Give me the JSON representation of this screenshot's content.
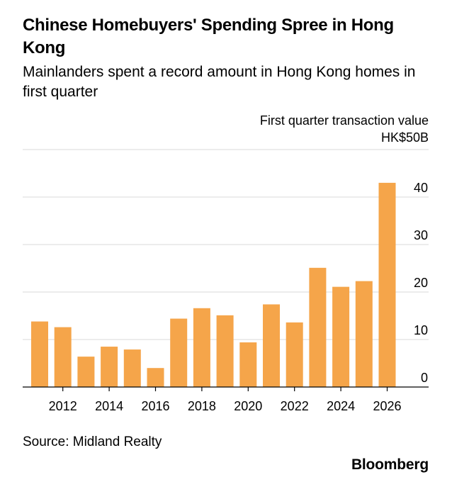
{
  "header": {
    "title": "Chinese Homebuyers' Spending Spree in Hong Kong",
    "subtitle": "Mainlanders spent a record amount in Hong Kong homes in first quarter",
    "unit_line1": "First quarter transaction value",
    "unit_line2": "HK$50B"
  },
  "footer": {
    "source": "Source: Midland Realty",
    "brand": "Bloomberg"
  },
  "colors": {
    "bar": "#f5a54a",
    "grid": "#d9d9d9",
    "axis": "#000000"
  },
  "chart_data": {
    "type": "bar",
    "title": "Chinese Homebuyers' Spending Spree in Hong Kong",
    "subtitle": "Mainlanders spent a record amount in Hong Kong homes in first quarter",
    "ylabel": "First quarter transaction value",
    "ylim": [
      0,
      50
    ],
    "y_ticks": [
      0,
      10,
      20,
      30,
      40
    ],
    "y_tick_labels": [
      "0",
      "10",
      "20",
      "30",
      "40"
    ],
    "top_label": "HK$50B",
    "x": [
      2011,
      2012,
      2013,
      2014,
      2015,
      2016,
      2017,
      2018,
      2019,
      2020,
      2021,
      2022,
      2023,
      2024,
      2025,
      2026
    ],
    "x_tick_labels": [
      "2012",
      "2014",
      "2016",
      "2018",
      "2020",
      "2022",
      "2024",
      "2026"
    ],
    "x_tick_values": [
      2012,
      2014,
      2016,
      2018,
      2020,
      2022,
      2024,
      2026
    ],
    "values": [
      13.8,
      12.6,
      6.4,
      8.5,
      7.9,
      4.0,
      14.4,
      16.6,
      15.1,
      9.4,
      17.4,
      13.6,
      25.1,
      21.1,
      22.3,
      43.0
    ],
    "grid": true,
    "legend": "none"
  }
}
